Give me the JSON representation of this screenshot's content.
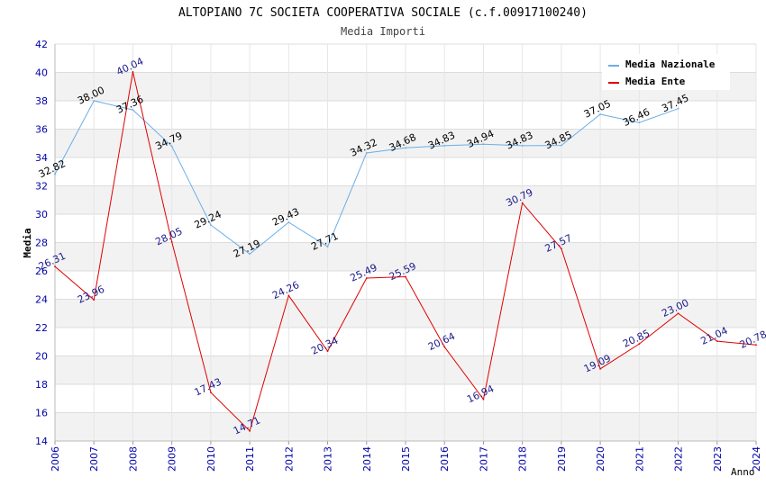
{
  "chart_data": {
    "type": "line",
    "title": "ALTOPIANO 7C SOCIETA COOPERATIVA SOCIALE (c.f.00917100240)",
    "subtitle": "Media Importi",
    "xlabel": "Anno",
    "ylabel": "Media",
    "ylim": [
      14,
      42
    ],
    "yticks": [
      "14",
      "16",
      "18",
      "20",
      "22",
      "24",
      "26",
      "28",
      "30",
      "32",
      "34",
      "36",
      "38",
      "40",
      "42"
    ],
    "x": [
      "2006",
      "2007",
      "2008",
      "2009",
      "2010",
      "2011",
      "2012",
      "2013",
      "2014",
      "2015",
      "2016",
      "2017",
      "2018",
      "2019",
      "2020",
      "2021",
      "2022",
      "2023",
      "2024"
    ],
    "legend_position": "top-right",
    "series": [
      {
        "name": "Media Nazionale",
        "color": "#6aaee8",
        "label_color": "#000000",
        "values": [
          32.82,
          38.0,
          37.36,
          34.79,
          29.24,
          27.19,
          29.43,
          27.71,
          34.32,
          34.68,
          34.83,
          34.94,
          34.83,
          34.85,
          37.05,
          36.46,
          37.45,
          null,
          null
        ],
        "labels": [
          "32.82",
          "38.00",
          "37.36",
          "34.79",
          "29.24",
          "27.19",
          "29.43",
          "27.71",
          "34.32",
          "34.68",
          "34.83",
          "34.94",
          "34.83",
          "34.85",
          "37.05",
          "36.46",
          "37.45",
          "",
          ""
        ]
      },
      {
        "name": "Media Ente",
        "color": "#e00000",
        "label_color": "#1a1a8c",
        "values": [
          26.31,
          23.96,
          40.04,
          28.05,
          17.43,
          14.71,
          24.26,
          20.34,
          25.49,
          25.59,
          20.64,
          16.94,
          30.79,
          27.57,
          19.09,
          20.85,
          23.0,
          21.04,
          20.78
        ],
        "labels": [
          "26.31",
          "23.96",
          "40.04",
          "28.05",
          "17.43",
          "14.71",
          "24.26",
          "20.34",
          "25.49",
          "25.59",
          "20.64",
          "16.94",
          "30.79",
          "27.57",
          "19.09",
          "20.85",
          "23.00",
          "21.04",
          "20.78"
        ]
      }
    ],
    "colors": {
      "band": "#f2f2f2",
      "grid": "#dcdcdc",
      "axis_tick_text": "#0000aa"
    }
  }
}
